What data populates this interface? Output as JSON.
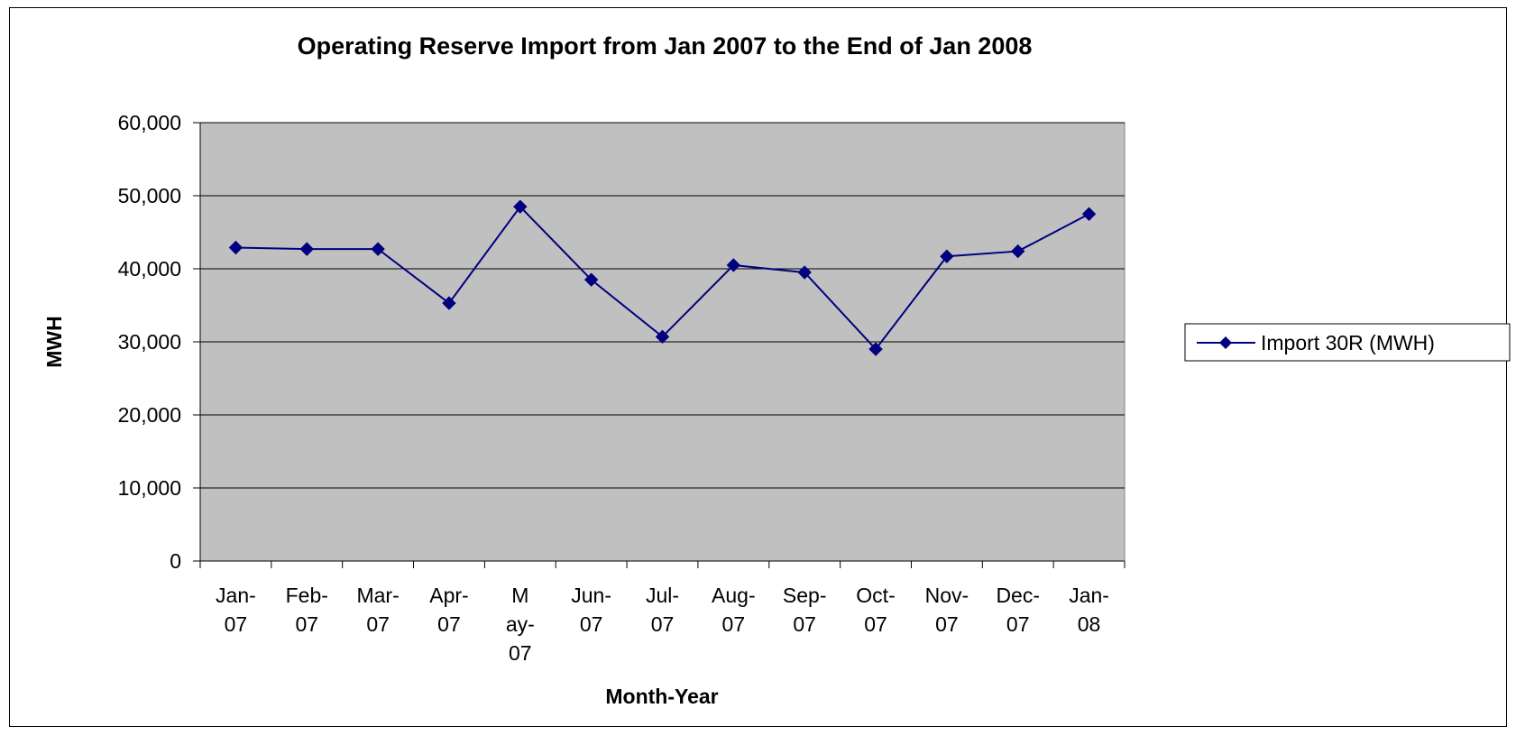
{
  "chart_data": {
    "type": "line",
    "title": "Operating Reserve Import from Jan 2007 to the End of Jan 2008",
    "xlabel": "Month-Year",
    "ylabel": "MWH",
    "categories": [
      [
        "Jan-",
        "07"
      ],
      [
        "Feb-",
        "07"
      ],
      [
        "Mar-",
        "07"
      ],
      [
        "Apr-",
        "07"
      ],
      [
        "M",
        "ay-",
        "07"
      ],
      [
        "Jun-",
        "07"
      ],
      [
        "Jul-",
        "07"
      ],
      [
        "Aug-",
        "07"
      ],
      [
        "Sep-",
        "07"
      ],
      [
        "Oct-",
        "07"
      ],
      [
        "Nov-",
        "07"
      ],
      [
        "Dec-",
        "07"
      ],
      [
        "Jan-",
        "08"
      ]
    ],
    "ylim": [
      0,
      60000
    ],
    "yticks": [
      0,
      10000,
      20000,
      30000,
      40000,
      50000,
      60000
    ],
    "ytick_labels": [
      "0",
      "10,000",
      "20,000",
      "30,000",
      "40,000",
      "50,000",
      "60,000"
    ],
    "grid": true,
    "plot_background": "#C0C0C0",
    "legend_position": "right",
    "series": [
      {
        "name": "Import 30R (MWH)",
        "color": "#000080",
        "marker": "diamond",
        "values": [
          42900,
          42700,
          42700,
          35300,
          48500,
          38500,
          30700,
          40500,
          39500,
          29000,
          41700,
          42400,
          47500
        ]
      }
    ]
  }
}
